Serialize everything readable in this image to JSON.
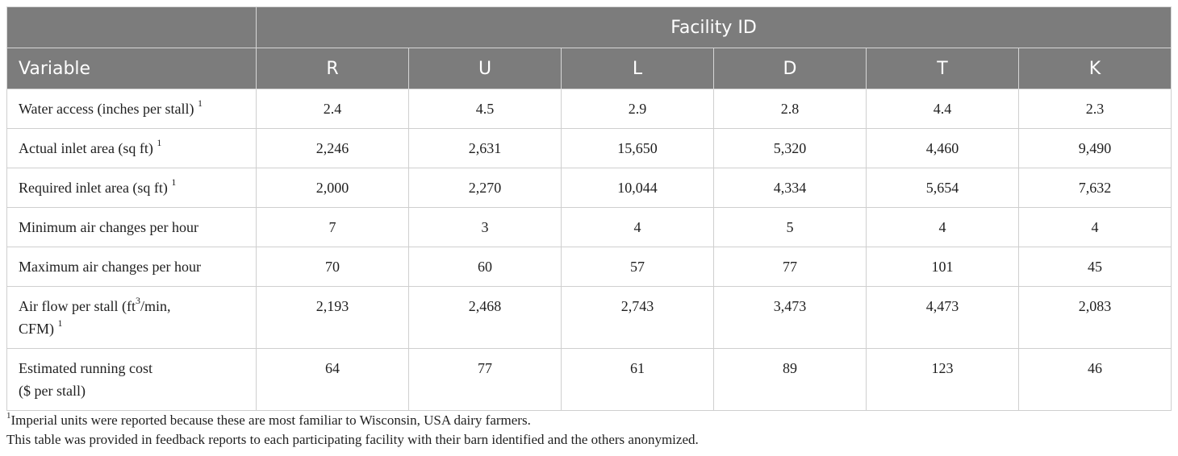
{
  "table": {
    "group_header": "Facility ID",
    "variable_header": "Variable",
    "facilities": [
      "R",
      "U",
      "L",
      "D",
      "T",
      "K"
    ],
    "rows": [
      {
        "label": "Water access (inches per stall)",
        "note": "1",
        "values": [
          "2.4",
          "4.5",
          "2.9",
          "2.8",
          "4.4",
          "2.3"
        ]
      },
      {
        "label": "Actual inlet area (sq ft)",
        "note": "1",
        "values": [
          "2,246",
          "2,631",
          "15,650",
          "5,320",
          "4,460",
          "9,490"
        ]
      },
      {
        "label": "Required inlet area (sq ft)",
        "note": "1",
        "values": [
          "2,000",
          "2,270",
          "10,044",
          "4,334",
          "5,654",
          "7,632"
        ]
      },
      {
        "label": "Minimum air changes per hour",
        "note": "",
        "values": [
          "7",
          "3",
          "4",
          "5",
          "4",
          "4"
        ]
      },
      {
        "label": "Maximum air changes per hour",
        "note": "",
        "values": [
          "70",
          "60",
          "57",
          "77",
          "101",
          "45"
        ]
      },
      {
        "label_line1_pre": "Air flow per stall (ft",
        "label_line1_sup": "3",
        "label_line1_post": "/min,",
        "label_line2": "CFM)",
        "note": "1",
        "values": [
          "2,193",
          "2,468",
          "2,743",
          "3,473",
          "4,473",
          "2,083"
        ]
      },
      {
        "label_line1": "Estimated running cost",
        "label_line2": "($ per stall)",
        "values": [
          "64",
          "77",
          "61",
          "89",
          "123",
          "46"
        ]
      }
    ]
  },
  "footnotes": {
    "note1_marker": "1",
    "note1_text": "Imperial units were reported because these are most familiar to Wisconsin, USA dairy farmers.",
    "note2_text": "This table was provided in feedback reports to each participating facility with their barn identified and the others anonymized."
  }
}
